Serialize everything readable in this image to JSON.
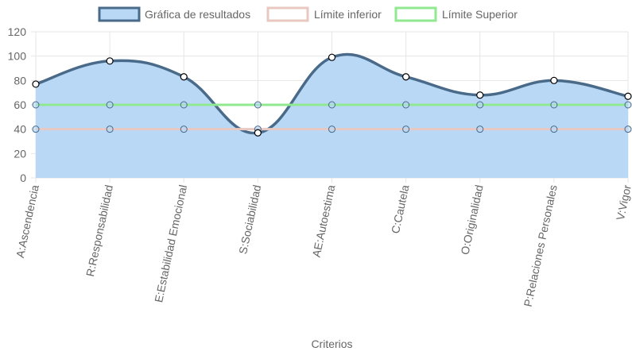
{
  "chart_data": {
    "type": "line",
    "xlabel": "Criterios",
    "ylabel": "",
    "ylim": [
      0,
      120
    ],
    "yticks": [
      0,
      20,
      40,
      60,
      80,
      100,
      120
    ],
    "grid": true,
    "legend_position": "top",
    "categories": [
      "A:Ascendencia",
      "R:Responsabilidad",
      "E:Estabilidad Emocional",
      "S:Sociabilidad",
      "AE:Autoestima",
      "C:Cautela",
      "O:Originalidad",
      "P:Relaciones Personales",
      "V:Vigor"
    ],
    "series": [
      {
        "name": "Gráfica de resultados",
        "values": [
          77,
          96,
          83,
          37,
          99,
          83,
          68,
          80,
          67
        ],
        "stroke": "#4a6a8a",
        "fill": "#b8d8f6",
        "filled": true
      },
      {
        "name": "Límite inferior",
        "values": [
          40,
          40,
          40,
          40,
          40,
          40,
          40,
          40,
          40
        ],
        "stroke": "#e8c8c0",
        "fill": "",
        "filled": false
      },
      {
        "name": "Límite Superior",
        "values": [
          60,
          60,
          60,
          60,
          60,
          60,
          60,
          60,
          60
        ],
        "stroke": "#90e890",
        "fill": "",
        "filled": false
      }
    ]
  }
}
